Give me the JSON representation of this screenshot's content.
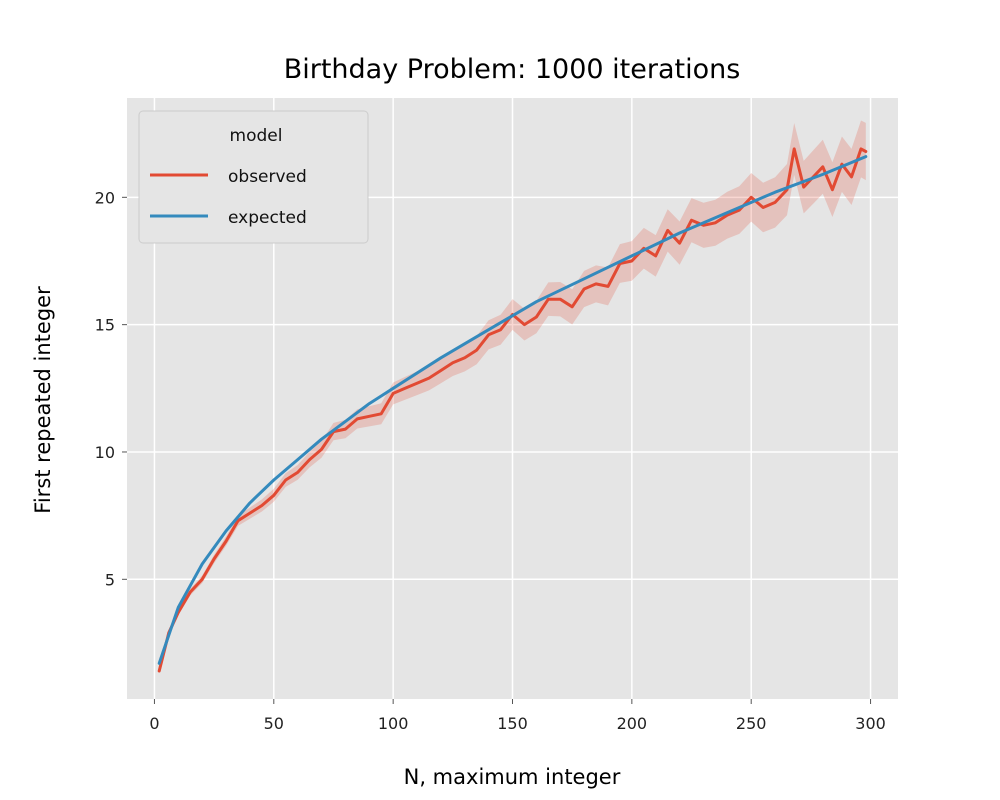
{
  "chart_data": {
    "type": "line",
    "title": "Birthday Problem: 1000 iterations",
    "xlabel": "N, maximum integer",
    "ylabel": "First repeated integer",
    "xlim": [
      -11.5,
      311.5
    ],
    "ylim": [
      0.3,
      23.9
    ],
    "xticks": [
      0,
      50,
      100,
      150,
      200,
      250,
      300
    ],
    "yticks": [
      5,
      10,
      15,
      20
    ],
    "grid": true,
    "background": "#e5e5e5",
    "legend": {
      "title": "model",
      "location": "upper-left"
    },
    "series": [
      {
        "name": "observed",
        "color": "#e24a33",
        "band": true,
        "x": [
          2,
          6,
          10,
          15,
          20,
          25,
          30,
          35,
          40,
          45,
          50,
          55,
          60,
          65,
          70,
          75,
          80,
          85,
          90,
          95,
          100,
          105,
          110,
          115,
          120,
          125,
          130,
          135,
          140,
          145,
          150,
          155,
          160,
          165,
          170,
          175,
          180,
          185,
          190,
          195,
          200,
          205,
          210,
          215,
          220,
          225,
          230,
          235,
          240,
          245,
          250,
          255,
          260,
          265,
          268,
          272,
          276,
          280,
          284,
          288,
          292,
          296,
          298
        ],
        "y": [
          1.4,
          2.9,
          3.7,
          4.5,
          5.0,
          5.8,
          6.5,
          7.3,
          7.6,
          7.9,
          8.3,
          8.9,
          9.2,
          9.7,
          10.1,
          10.8,
          10.9,
          11.3,
          11.4,
          11.5,
          12.3,
          12.5,
          12.7,
          12.9,
          13.2,
          13.5,
          13.7,
          14.0,
          14.6,
          14.8,
          15.4,
          15.0,
          15.3,
          16.0,
          16.0,
          15.7,
          16.4,
          16.6,
          16.5,
          17.4,
          17.5,
          18.0,
          17.7,
          18.7,
          18.2,
          19.1,
          18.9,
          19.0,
          19.3,
          19.5,
          20.0,
          19.6,
          19.8,
          20.3,
          21.9,
          20.4,
          20.8,
          21.2,
          20.3,
          21.3,
          20.8,
          21.9,
          21.8
        ]
      },
      {
        "name": "expected",
        "color": "#348abd",
        "x": [
          2,
          10,
          20,
          30,
          40,
          50,
          60,
          70,
          80,
          90,
          100,
          120,
          140,
          160,
          180,
          200,
          220,
          240,
          260,
          280,
          298
        ],
        "y": [
          1.7,
          3.9,
          5.6,
          6.9,
          8.0,
          8.9,
          9.7,
          10.5,
          11.2,
          11.9,
          12.5,
          13.7,
          14.8,
          15.9,
          16.8,
          17.7,
          18.6,
          19.4,
          20.2,
          20.9,
          21.6
        ]
      }
    ]
  }
}
